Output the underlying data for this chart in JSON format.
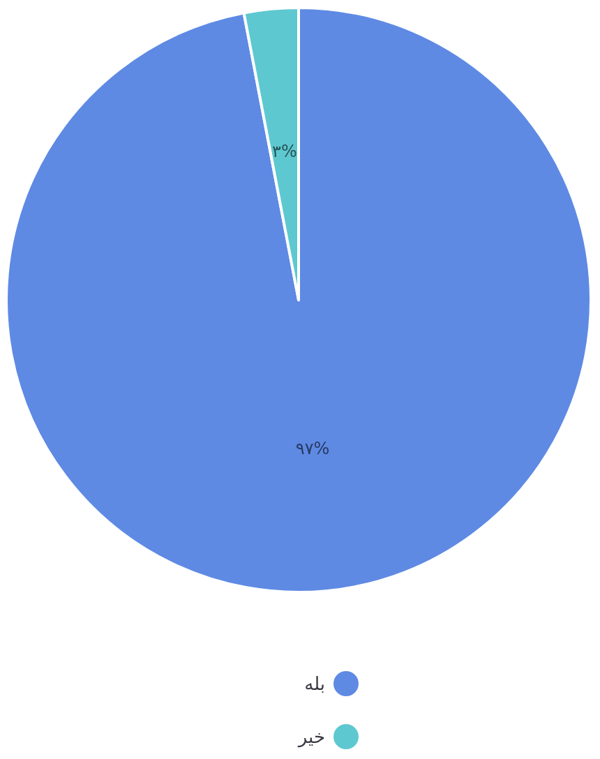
{
  "chart_data": {
    "type": "pie",
    "categories": [
      "بله",
      "خیر"
    ],
    "values": [
      97,
      3
    ],
    "colors": [
      "#5e8ae4",
      "#5ec8d0"
    ],
    "value_labels": [
      "۹۷%",
      "۳%"
    ],
    "legend": "bottom"
  }
}
